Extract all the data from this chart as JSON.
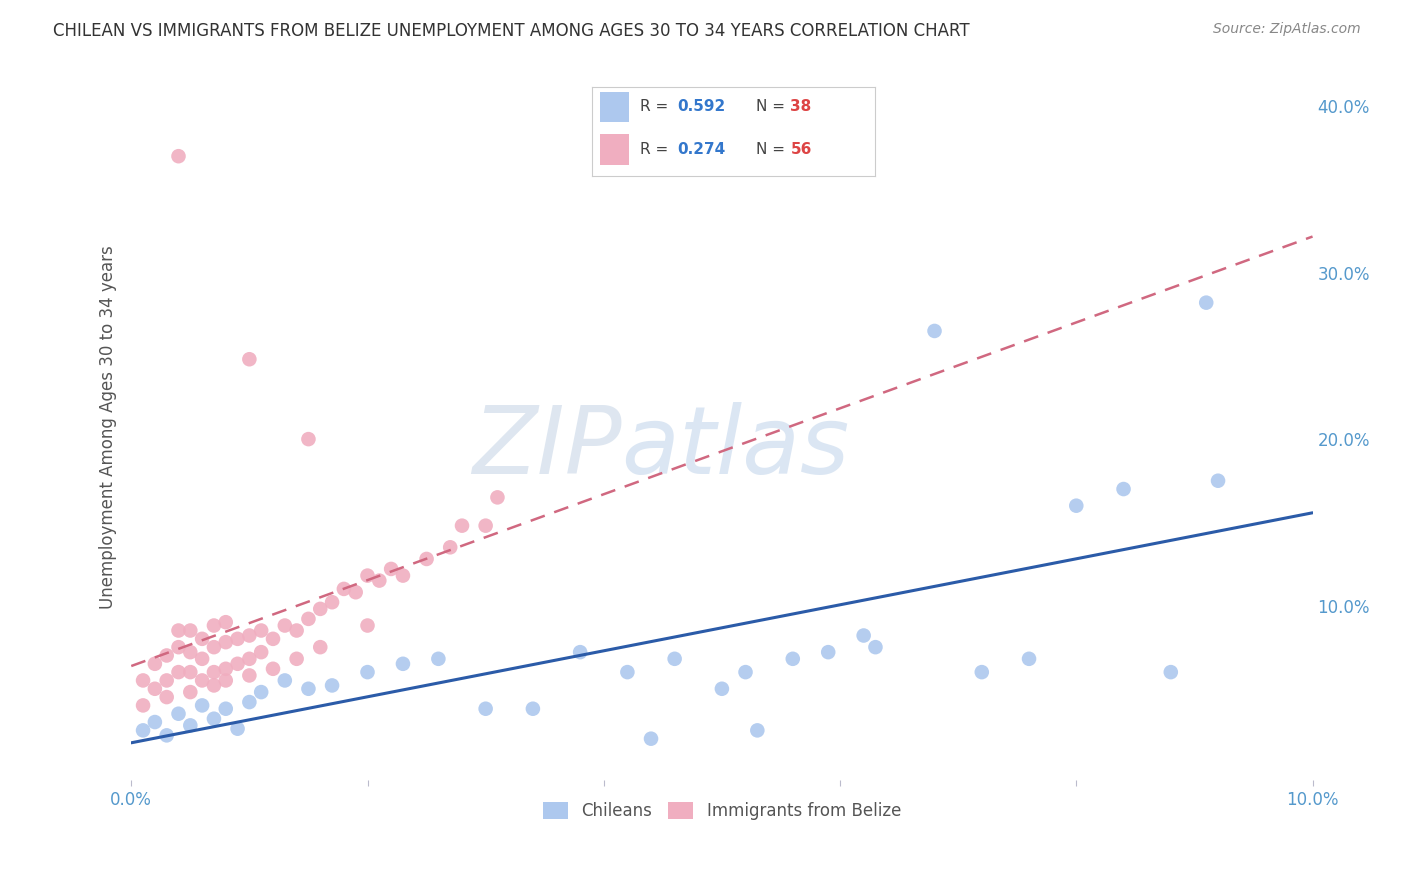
{
  "title": "CHILEAN VS IMMIGRANTS FROM BELIZE UNEMPLOYMENT AMONG AGES 30 TO 34 YEARS CORRELATION CHART",
  "source": "Source: ZipAtlas.com",
  "ylabel": "Unemployment Among Ages 30 to 34 years",
  "xlim": [
    0.0,
    0.1
  ],
  "ylim": [
    -0.005,
    0.42
  ],
  "ytick_vals": [
    0.1,
    0.2,
    0.3,
    0.4
  ],
  "xtick_vals": [
    0.0,
    0.02,
    0.04,
    0.06,
    0.08,
    0.1
  ],
  "chilean_color": "#adc8ee",
  "belize_color": "#f0aec0",
  "chilean_line_color": "#2b5ba8",
  "belize_line_color": "#d06880",
  "watermark": "ZIPatlas",
  "chilean_x": [
    0.001,
    0.002,
    0.003,
    0.004,
    0.005,
    0.006,
    0.007,
    0.008,
    0.009,
    0.01,
    0.011,
    0.013,
    0.015,
    0.017,
    0.02,
    0.023,
    0.026,
    0.03,
    0.034,
    0.038,
    0.042,
    0.046,
    0.05,
    0.052,
    0.056,
    0.059,
    0.063,
    0.068,
    0.072,
    0.076,
    0.08,
    0.084,
    0.088,
    0.092,
    0.044,
    0.053,
    0.062,
    0.091
  ],
  "chilean_y": [
    0.025,
    0.03,
    0.022,
    0.035,
    0.028,
    0.04,
    0.032,
    0.038,
    0.026,
    0.042,
    0.048,
    0.055,
    0.05,
    0.052,
    0.06,
    0.065,
    0.068,
    0.038,
    0.038,
    0.072,
    0.06,
    0.068,
    0.05,
    0.06,
    0.068,
    0.072,
    0.075,
    0.265,
    0.06,
    0.068,
    0.16,
    0.17,
    0.06,
    0.175,
    0.02,
    0.025,
    0.082,
    0.282
  ],
  "belize_x": [
    0.001,
    0.001,
    0.002,
    0.002,
    0.003,
    0.003,
    0.004,
    0.004,
    0.004,
    0.005,
    0.005,
    0.005,
    0.006,
    0.006,
    0.006,
    0.007,
    0.007,
    0.007,
    0.008,
    0.008,
    0.008,
    0.009,
    0.009,
    0.01,
    0.01,
    0.011,
    0.011,
    0.012,
    0.013,
    0.014,
    0.015,
    0.016,
    0.017,
    0.018,
    0.019,
    0.02,
    0.021,
    0.022,
    0.023,
    0.025,
    0.027,
    0.028,
    0.03,
    0.031,
    0.003,
    0.005,
    0.007,
    0.008,
    0.01,
    0.012,
    0.014,
    0.016,
    0.02,
    0.004,
    0.01,
    0.015
  ],
  "belize_y": [
    0.04,
    0.055,
    0.05,
    0.065,
    0.055,
    0.07,
    0.06,
    0.075,
    0.085,
    0.06,
    0.072,
    0.085,
    0.055,
    0.068,
    0.08,
    0.06,
    0.075,
    0.088,
    0.062,
    0.078,
    0.09,
    0.065,
    0.08,
    0.068,
    0.082,
    0.072,
    0.085,
    0.08,
    0.088,
    0.085,
    0.092,
    0.098,
    0.102,
    0.11,
    0.108,
    0.118,
    0.115,
    0.122,
    0.118,
    0.128,
    0.135,
    0.148,
    0.148,
    0.165,
    0.045,
    0.048,
    0.052,
    0.055,
    0.058,
    0.062,
    0.068,
    0.075,
    0.088,
    0.37,
    0.248,
    0.2
  ]
}
